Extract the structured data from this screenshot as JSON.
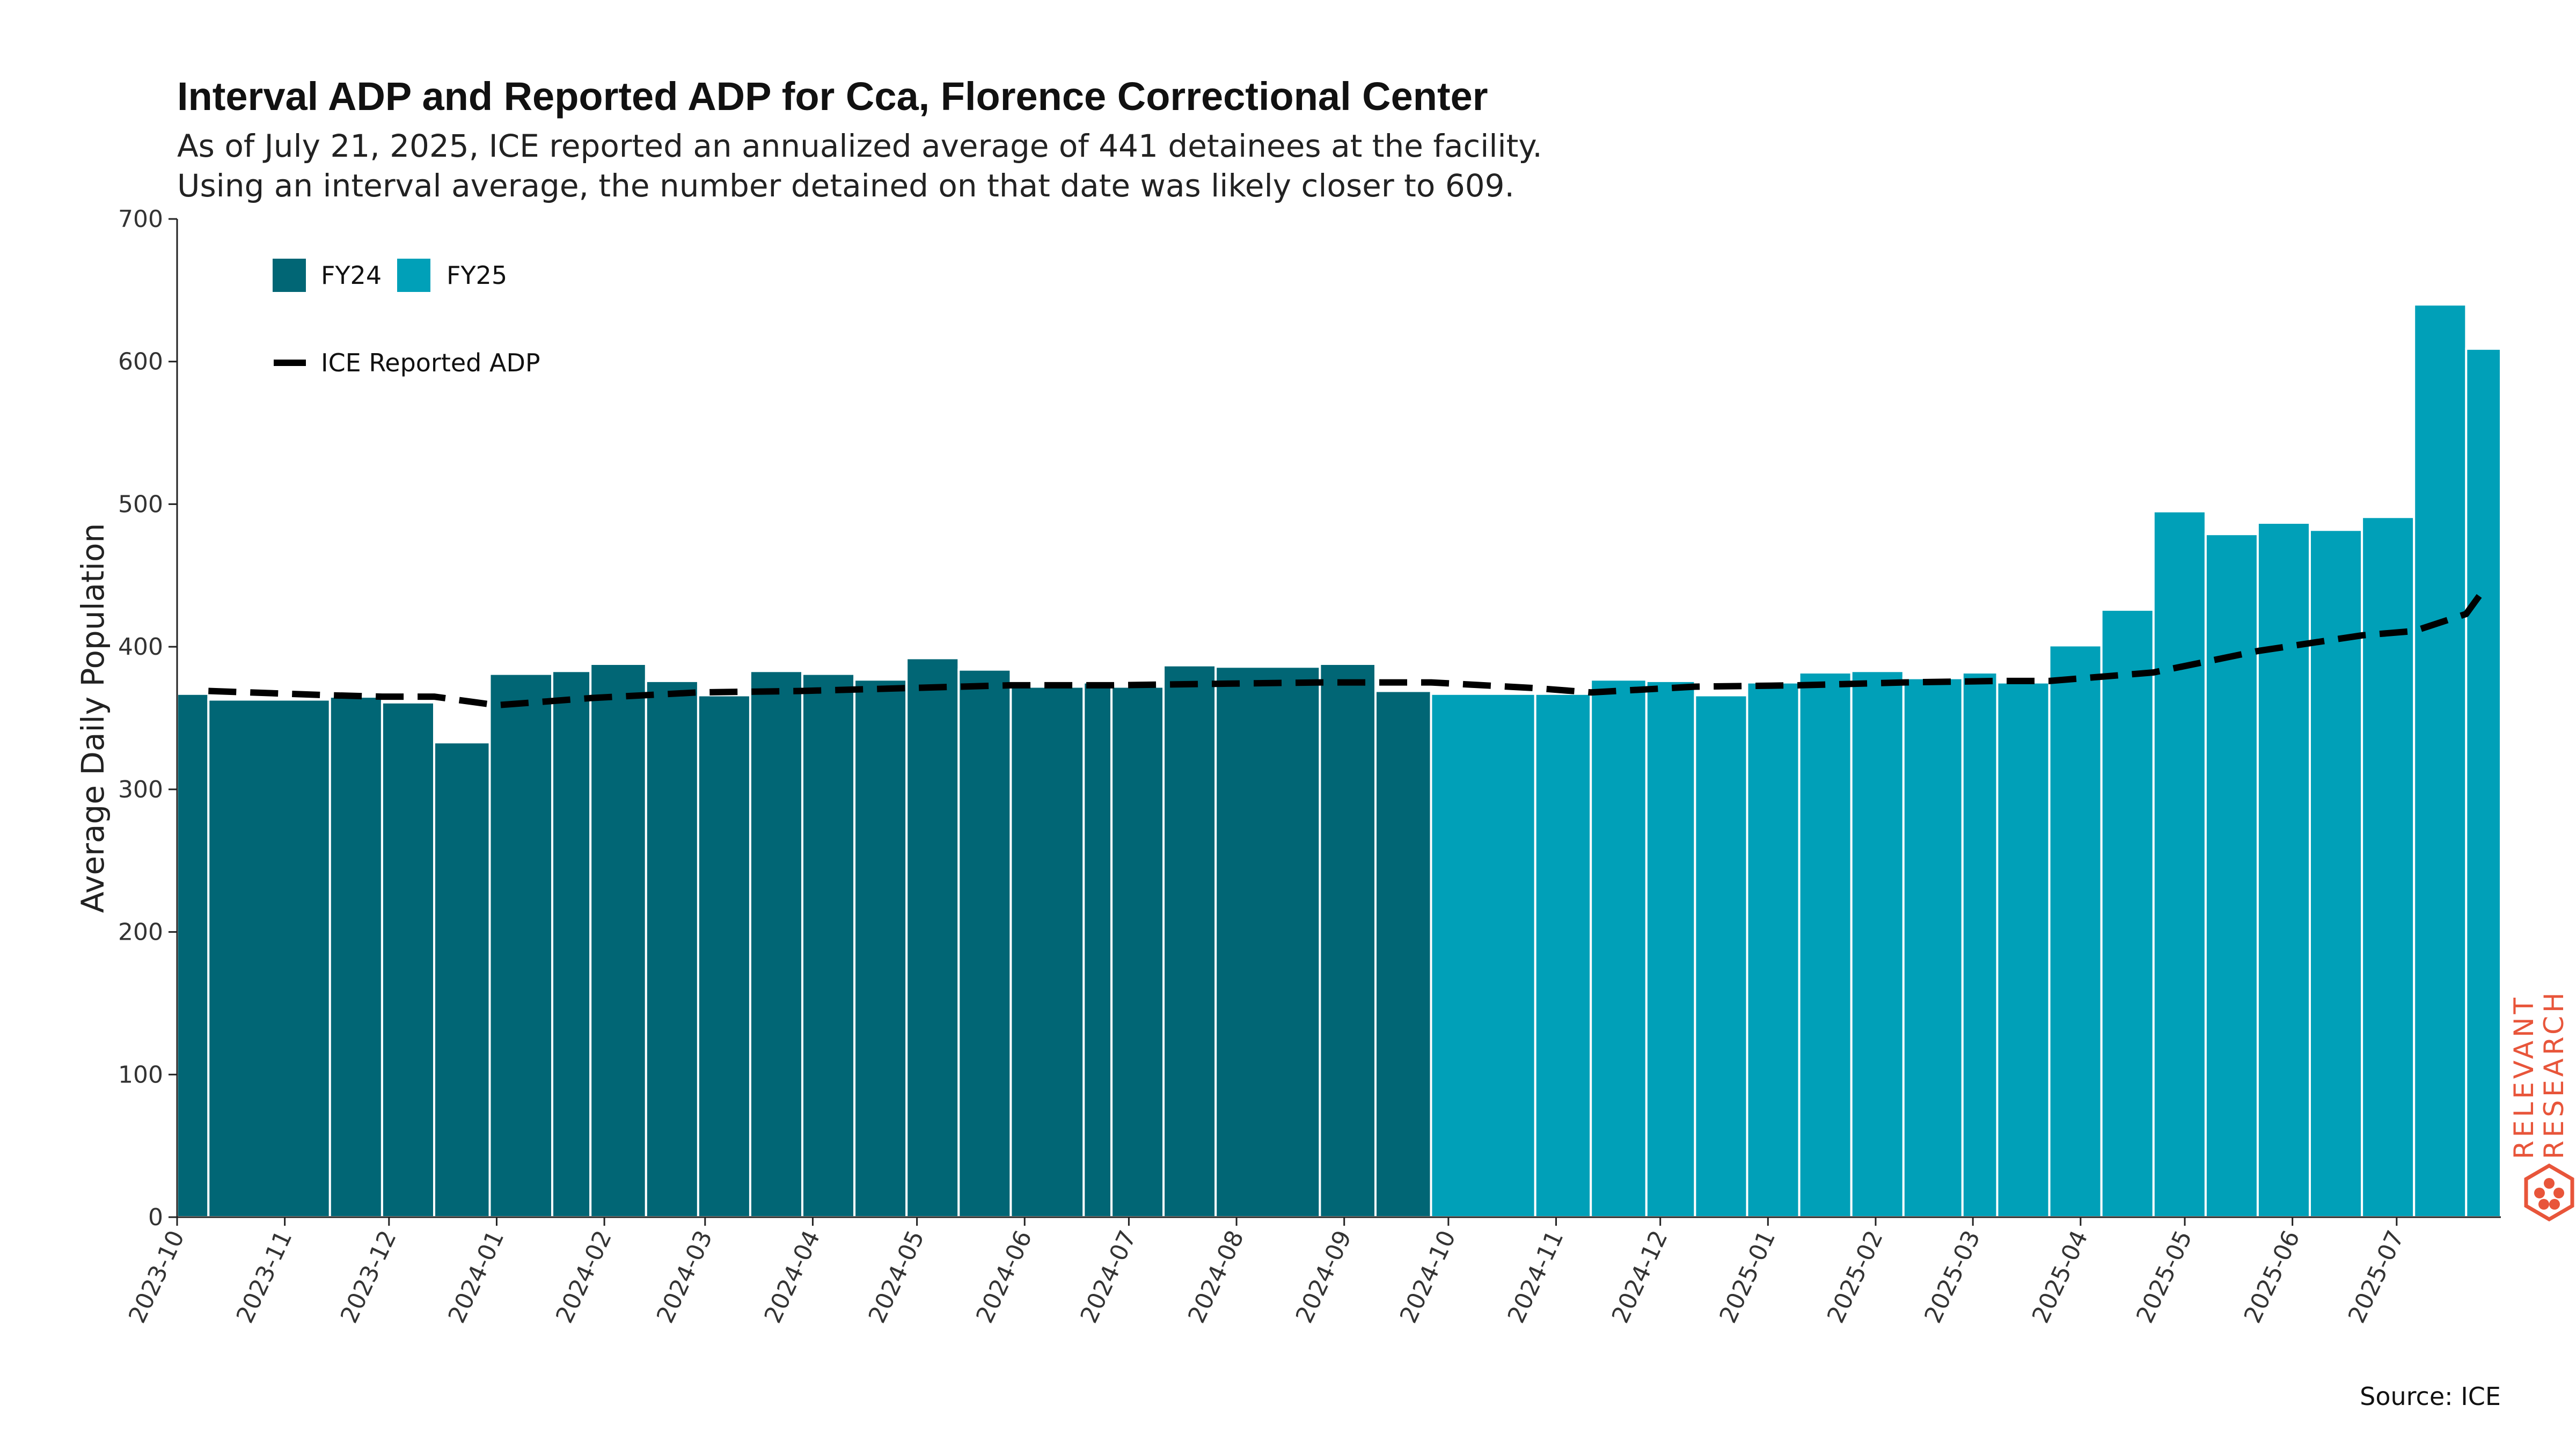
{
  "chart_data": {
    "type": "bar",
    "title": "Interval ADP and Reported ADP for Cca, Florence Correctional Center",
    "subtitle_lines": [
      "As of July 21, 2025, ICE reported an annualized average of 441 detainees at the facility.",
      "Using an interval average, the number detained on that date was likely closer to 609."
    ],
    "ylabel": "Average Daily Population",
    "ylim": [
      0,
      700
    ],
    "yticks": [
      "0",
      "100",
      "200",
      "300",
      "400",
      "500",
      "600",
      "700"
    ],
    "xticks": [
      "2023-10",
      "2023-11",
      "2023-12",
      "2024-01",
      "2024-02",
      "2024-03",
      "2024-04",
      "2024-05",
      "2024-06",
      "2024-07",
      "2024-08",
      "2024-09",
      "2024-10",
      "2024-11",
      "2024-12",
      "2025-01",
      "2025-02",
      "2025-03",
      "2025-04",
      "2025-05",
      "2025-06",
      "2025-07"
    ],
    "x_range": [
      "2023-10-01",
      "2025-07-31"
    ],
    "legend": [
      {
        "name": "FY24",
        "color": "#016675"
      },
      {
        "name": "FY25",
        "color": "#00a0b8"
      },
      {
        "name": "ICE Reported ADP",
        "color": "#000000",
        "style": "dashed"
      }
    ],
    "bars": [
      {
        "start": "2023-10-01",
        "end": "2023-10-10",
        "value": 367,
        "series": "FY24"
      },
      {
        "start": "2023-10-10",
        "end": "2023-11-14",
        "value": 363,
        "series": "FY24"
      },
      {
        "start": "2023-11-14",
        "end": "2023-11-29",
        "value": 365,
        "series": "FY24"
      },
      {
        "start": "2023-11-29",
        "end": "2023-12-14",
        "value": 361,
        "series": "FY24"
      },
      {
        "start": "2023-12-14",
        "end": "2023-12-30",
        "value": 333,
        "series": "FY24"
      },
      {
        "start": "2023-12-30",
        "end": "2024-01-17",
        "value": 381,
        "series": "FY24"
      },
      {
        "start": "2024-01-17",
        "end": "2024-01-28",
        "value": 383,
        "series": "FY24"
      },
      {
        "start": "2024-01-28",
        "end": "2024-02-13",
        "value": 388,
        "series": "FY24"
      },
      {
        "start": "2024-02-13",
        "end": "2024-02-28",
        "value": 376,
        "series": "FY24"
      },
      {
        "start": "2024-02-28",
        "end": "2024-03-14",
        "value": 366,
        "series": "FY24"
      },
      {
        "start": "2024-03-14",
        "end": "2024-03-29",
        "value": 383,
        "series": "FY24"
      },
      {
        "start": "2024-03-29",
        "end": "2024-04-13",
        "value": 381,
        "series": "FY24"
      },
      {
        "start": "2024-04-13",
        "end": "2024-04-28",
        "value": 377,
        "series": "FY24"
      },
      {
        "start": "2024-04-28",
        "end": "2024-05-13",
        "value": 392,
        "series": "FY24"
      },
      {
        "start": "2024-05-13",
        "end": "2024-05-28",
        "value": 384,
        "series": "FY24"
      },
      {
        "start": "2024-05-28",
        "end": "2024-06-18",
        "value": 372,
        "series": "FY24"
      },
      {
        "start": "2024-06-18",
        "end": "2024-06-26",
        "value": 375,
        "series": "FY24"
      },
      {
        "start": "2024-06-26",
        "end": "2024-07-11",
        "value": 372,
        "series": "FY24"
      },
      {
        "start": "2024-07-11",
        "end": "2024-07-26",
        "value": 387,
        "series": "FY24"
      },
      {
        "start": "2024-07-26",
        "end": "2024-08-25",
        "value": 386,
        "series": "FY24"
      },
      {
        "start": "2024-08-25",
        "end": "2024-09-10",
        "value": 388,
        "series": "FY24"
      },
      {
        "start": "2024-09-10",
        "end": "2024-09-26",
        "value": 369,
        "series": "FY24"
      },
      {
        "start": "2024-09-26",
        "end": "2024-10-26",
        "value": 367,
        "series": "FY25"
      },
      {
        "start": "2024-10-26",
        "end": "2024-11-11",
        "value": 367,
        "series": "FY25"
      },
      {
        "start": "2024-11-11",
        "end": "2024-11-27",
        "value": 377,
        "series": "FY25"
      },
      {
        "start": "2024-11-27",
        "end": "2024-12-11",
        "value": 376,
        "series": "FY25"
      },
      {
        "start": "2024-12-11",
        "end": "2024-12-26",
        "value": 366,
        "series": "FY25"
      },
      {
        "start": "2024-12-26",
        "end": "2025-01-10",
        "value": 375,
        "series": "FY25"
      },
      {
        "start": "2025-01-10",
        "end": "2025-01-25",
        "value": 382,
        "series": "FY25"
      },
      {
        "start": "2025-01-25",
        "end": "2025-02-09",
        "value": 383,
        "series": "FY25"
      },
      {
        "start": "2025-02-09",
        "end": "2025-02-26",
        "value": 378,
        "series": "FY25"
      },
      {
        "start": "2025-02-26",
        "end": "2025-03-08",
        "value": 382,
        "series": "FY25"
      },
      {
        "start": "2025-03-08",
        "end": "2025-03-23",
        "value": 375,
        "series": "FY25"
      },
      {
        "start": "2025-03-23",
        "end": "2025-04-07",
        "value": 401,
        "series": "FY25"
      },
      {
        "start": "2025-04-07",
        "end": "2025-04-22",
        "value": 426,
        "series": "FY25"
      },
      {
        "start": "2025-04-22",
        "end": "2025-05-07",
        "value": 495,
        "series": "FY25"
      },
      {
        "start": "2025-05-07",
        "end": "2025-05-22",
        "value": 479,
        "series": "FY25"
      },
      {
        "start": "2025-05-22",
        "end": "2025-06-06",
        "value": 487,
        "series": "FY25"
      },
      {
        "start": "2025-06-06",
        "end": "2025-06-21",
        "value": 482,
        "series": "FY25"
      },
      {
        "start": "2025-06-21",
        "end": "2025-07-06",
        "value": 491,
        "series": "FY25"
      },
      {
        "start": "2025-07-06",
        "end": "2025-07-21",
        "value": 640,
        "series": "FY25"
      },
      {
        "start": "2025-07-21",
        "end": "2025-08-20",
        "value": 609,
        "series": "FY25"
      }
    ],
    "line": {
      "name": "ICE Reported ADP",
      "points": [
        {
          "date": "2023-10-10",
          "value": 369
        },
        {
          "date": "2023-11-14",
          "value": 366
        },
        {
          "date": "2023-11-29",
          "value": 365
        },
        {
          "date": "2023-12-14",
          "value": 365
        },
        {
          "date": "2024-01-01",
          "value": 359
        },
        {
          "date": "2024-01-28",
          "value": 364
        },
        {
          "date": "2024-02-28",
          "value": 368
        },
        {
          "date": "2024-03-29",
          "value": 369
        },
        {
          "date": "2024-04-28",
          "value": 371
        },
        {
          "date": "2024-05-28",
          "value": 373
        },
        {
          "date": "2024-06-26",
          "value": 373
        },
        {
          "date": "2024-07-26",
          "value": 374
        },
        {
          "date": "2024-08-25",
          "value": 375
        },
        {
          "date": "2024-09-26",
          "value": 375
        },
        {
          "date": "2024-10-26",
          "value": 371
        },
        {
          "date": "2024-11-11",
          "value": 368
        },
        {
          "date": "2024-12-11",
          "value": 372
        },
        {
          "date": "2025-01-10",
          "value": 373
        },
        {
          "date": "2025-02-09",
          "value": 375
        },
        {
          "date": "2025-03-08",
          "value": 376
        },
        {
          "date": "2025-03-23",
          "value": 376
        },
        {
          "date": "2025-04-22",
          "value": 382
        },
        {
          "date": "2025-05-22",
          "value": 397
        },
        {
          "date": "2025-06-21",
          "value": 408
        },
        {
          "date": "2025-07-06",
          "value": 411
        },
        {
          "date": "2025-07-21",
          "value": 423
        },
        {
          "date": "2025-08-20",
          "value": 441
        }
      ]
    },
    "grid": false,
    "legend_position": "top-left",
    "source": "Source: ICE",
    "brand": [
      "RELEVANT",
      "RESEARCH"
    ]
  },
  "colors": {
    "fy24": "#016675",
    "fy25": "#00a0b8",
    "line": "#000000",
    "brand": "#e8553a"
  }
}
